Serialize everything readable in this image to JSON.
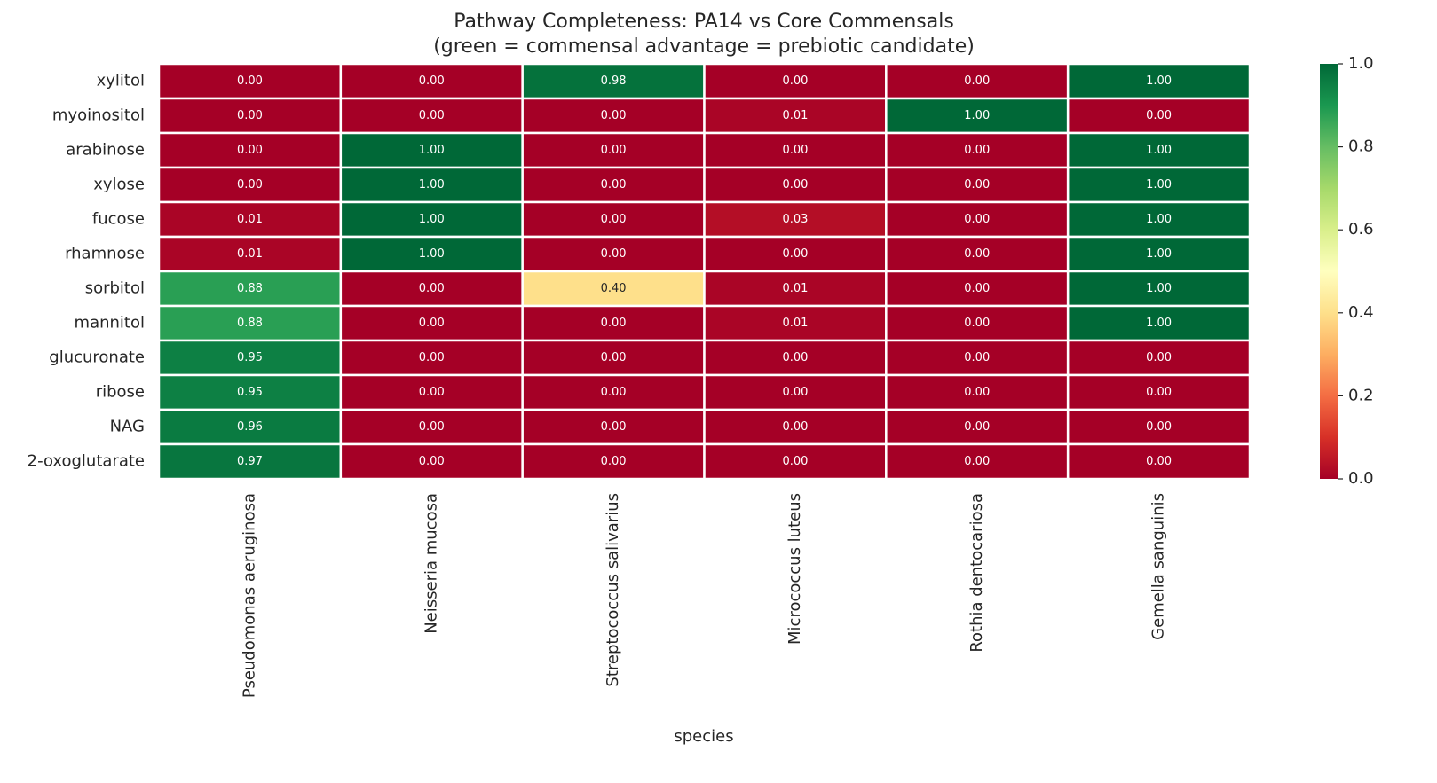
{
  "chart_data": {
    "type": "heatmap",
    "title": "Pathway Completeness: PA14 vs Core Commensals",
    "subtitle": "(green = commensal advantage = prebiotic candidate)",
    "xlabel": "species",
    "x_categories": [
      "Pseudomonas aeruginosa",
      "Neisseria mucosa",
      "Streptococcus salivarius",
      "Micrococcus luteus",
      "Rothia dentocariosa",
      "Gemella sanguinis"
    ],
    "y_categories": [
      "xylitol",
      "myoinositol",
      "arabinose",
      "xylose",
      "fucose",
      "rhamnose",
      "sorbitol",
      "mannitol",
      "glucuronate",
      "ribose",
      "NAG",
      "2-oxoglutarate"
    ],
    "values": [
      [
        0,
        0,
        0.98,
        0,
        0,
        1
      ],
      [
        0,
        0,
        0,
        0.01,
        1,
        0
      ],
      [
        0,
        1,
        0,
        0,
        0,
        1
      ],
      [
        0,
        1,
        0,
        0,
        0,
        1
      ],
      [
        0.01,
        1,
        0,
        0.03,
        0,
        1
      ],
      [
        0.01,
        1,
        0,
        0,
        0,
        1
      ],
      [
        0.88,
        0,
        0.4,
        0.01,
        0,
        1
      ],
      [
        0.88,
        0,
        0,
        0.01,
        0,
        1
      ],
      [
        0.95,
        0,
        0,
        0,
        0,
        0
      ],
      [
        0.95,
        0,
        0,
        0,
        0,
        0
      ],
      [
        0.96,
        0,
        0,
        0,
        0,
        0
      ],
      [
        0.97,
        0,
        0,
        0,
        0,
        0
      ]
    ],
    "value_labels": [
      [
        "0.00",
        "0.00",
        "0.98",
        "0.00",
        "0.00",
        "1.00"
      ],
      [
        "0.00",
        "0.00",
        "0.00",
        "0.01",
        "1.00",
        "0.00"
      ],
      [
        "0.00",
        "1.00",
        "0.00",
        "0.00",
        "0.00",
        "1.00"
      ],
      [
        "0.00",
        "1.00",
        "0.00",
        "0.00",
        "0.00",
        "1.00"
      ],
      [
        "0.01",
        "1.00",
        "0.00",
        "0.03",
        "0.00",
        "1.00"
      ],
      [
        "0.01",
        "1.00",
        "0.00",
        "0.00",
        "0.00",
        "1.00"
      ],
      [
        "0.88",
        "0.00",
        "0.40",
        "0.01",
        "0.00",
        "1.00"
      ],
      [
        "0.88",
        "0.00",
        "0.00",
        "0.01",
        "0.00",
        "1.00"
      ],
      [
        "0.95",
        "0.00",
        "0.00",
        "0.00",
        "0.00",
        "0.00"
      ],
      [
        "0.95",
        "0.00",
        "0.00",
        "0.00",
        "0.00",
        "0.00"
      ],
      [
        "0.96",
        "0.00",
        "0.00",
        "0.00",
        "0.00",
        "0.00"
      ],
      [
        "0.97",
        "0.00",
        "0.00",
        "0.00",
        "0.00",
        "0.00"
      ]
    ],
    "colormap": [
      "#a50026",
      "#d73027",
      "#f46d43",
      "#fdae61",
      "#fee08b",
      "#ffffbf",
      "#d9ef8b",
      "#a6d96a",
      "#66bd63",
      "#1a9850",
      "#006837"
    ],
    "clim": [
      0,
      1
    ],
    "cticks": [
      {
        "value": 0,
        "label": "0.0"
      },
      {
        "value": 0.2,
        "label": "0.2"
      },
      {
        "value": 0.4,
        "label": "0.4"
      },
      {
        "value": 0.6,
        "label": "0.6"
      },
      {
        "value": 0.8,
        "label": "0.8"
      },
      {
        "value": 1,
        "label": "1.0"
      }
    ]
  }
}
